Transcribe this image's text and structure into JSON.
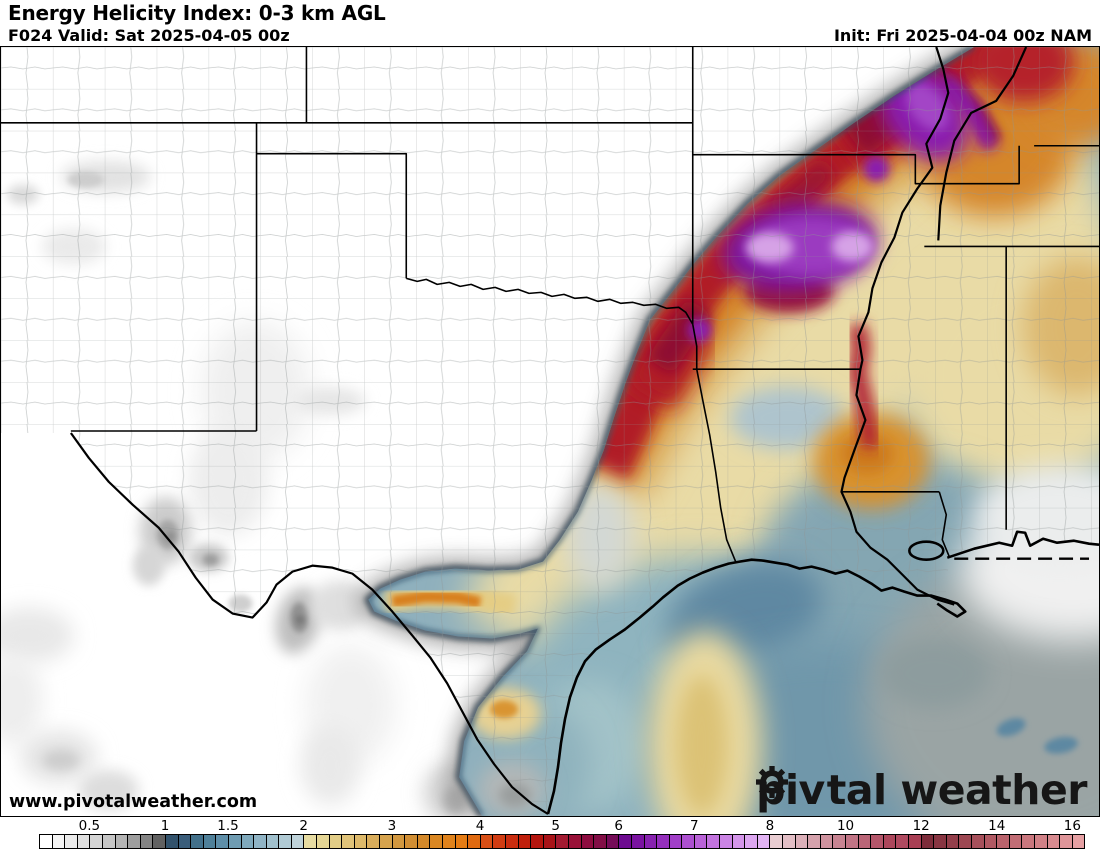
{
  "header": {
    "title": "Energy Helicity Index: 0-3 km AGL",
    "valid": "F024 Valid: Sat 2025-04-05 00z",
    "init": "Init: Fri 2025-04-04 00z NAM"
  },
  "map": {
    "watermark": "www.pivotalweather.com",
    "logo_part1": "piv",
    "logo_part2": "tal weather",
    "palette": {
      "low_gray": "#9e9e9e",
      "blue": "#35566e",
      "teal": "#87abbb",
      "yellow": "#ecdfae",
      "orange": "#d7892a",
      "red": "#b11d27",
      "crimson": "#8e1031",
      "purple": "#8a1fae",
      "lavender": "#d6a2e6",
      "pink": "#cf939f",
      "maroon": "#7d2c3a"
    }
  },
  "legend": {
    "labels": [
      {
        "v": "0.5",
        "f": 0.04819
      },
      {
        "v": "1",
        "f": 0.12048
      },
      {
        "v": "1.5",
        "f": 0.18072
      },
      {
        "v": "2",
        "f": 0.25301
      },
      {
        "v": "3",
        "f": 0.33735
      },
      {
        "v": "4",
        "f": 0.42169
      },
      {
        "v": "5",
        "f": 0.49398
      },
      {
        "v": "6",
        "f": 0.55422
      },
      {
        "v": "7",
        "f": 0.62651
      },
      {
        "v": "8",
        "f": 0.6988
      },
      {
        "v": "10",
        "f": 0.77108
      },
      {
        "v": "12",
        "f": 0.84337
      },
      {
        "v": "14",
        "f": 0.91566
      },
      {
        "v": "16",
        "f": 0.98795
      }
    ],
    "cells": [
      "#ffffff",
      "#f5f5f5",
      "#ebebeb",
      "#e0e0e0",
      "#d4d4d4",
      "#c6c6c6",
      "#b4b4b4",
      "#9e9e9e",
      "#848484",
      "#616161",
      "#32526c",
      "#3a5d7a",
      "#42708a",
      "#4f8099",
      "#5e8ea8",
      "#6f9cb2",
      "#7fa9bc",
      "#90b4c5",
      "#a0c0cd",
      "#b0cad4",
      "#bfd3da",
      "#e7dca2",
      "#e5d695",
      "#e2cd87",
      "#e0c379",
      "#ddb96a",
      "#d9ad5b",
      "#d6a34d",
      "#d3983f",
      "#d18e33",
      "#d4892a",
      "#da8722",
      "#e0831c",
      "#e57c14",
      "#e06a10",
      "#d84f16",
      "#d13c12",
      "#c92c0f",
      "#c01f0c",
      "#b4150e",
      "#a91318",
      "#a31a31",
      "#991138",
      "#8d0c3f",
      "#820e46",
      "#750c58",
      "#6d0b90",
      "#7a13a1",
      "#8722af",
      "#942fbc",
      "#a13fc8",
      "#ad50d1",
      "#b962d8",
      "#c273de",
      "#cb84e5",
      "#d495ea",
      "#dca6f0",
      "#e2b4f4",
      "#e9cdd2",
      "#e3bfc6",
      "#dcb0b9",
      "#d5a2ac",
      "#cf939f",
      "#c88492",
      "#c17485",
      "#ba6577",
      "#b4566a",
      "#ad475c",
      "#b04a60",
      "#a93f54",
      "#7d2c3a",
      "#883542",
      "#933e4a",
      "#9d4752",
      "#a7505b",
      "#b15963",
      "#ba636c",
      "#c26d75",
      "#ca777e",
      "#d18187",
      "#d88b90",
      "#df9599",
      "#e6a0a3"
    ]
  }
}
